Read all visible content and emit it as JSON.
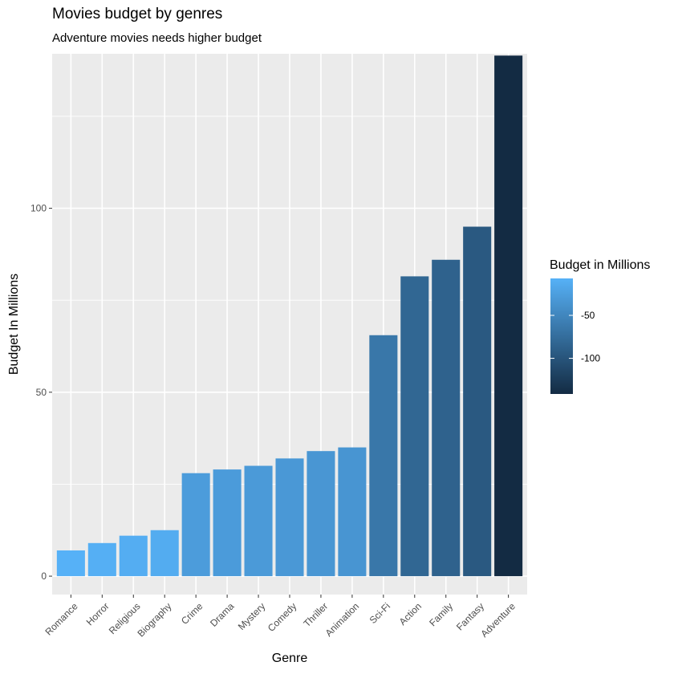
{
  "chart_data": {
    "type": "bar",
    "title": "Movies budget by genres",
    "subtitle": "Adventure movies needs higher budget",
    "xlabel": "Genre",
    "ylabel": "Budget In Millions",
    "categories": [
      "Romance",
      "Horror",
      "Religious",
      "Biography",
      "Crime",
      "Drama",
      "Mystery",
      "Comedy",
      "Thriller",
      "Animation",
      "Sci-Fi",
      "Action",
      "Family",
      "Fantasy",
      "Adventure"
    ],
    "values": [
      7,
      9,
      11,
      12.5,
      28,
      29,
      30,
      32,
      34,
      35,
      65.5,
      81.5,
      86,
      95,
      141.5
    ],
    "fill_values": [
      -7,
      -9,
      -11,
      -12.5,
      -28,
      -29,
      -30,
      -32,
      -34,
      -35,
      -65.5,
      -81.5,
      -86,
      -95,
      -141.5
    ],
    "ylim": [
      -5,
      142
    ],
    "y_ticks": [
      0,
      50,
      100
    ],
    "grid": true,
    "panel_background": "#EBEBEB",
    "legend": {
      "title": "Budget in Millions",
      "position": "right",
      "ticks": [
        -50,
        -100
      ],
      "range": [
        -141.5,
        -7
      ],
      "low_color": "#132B43",
      "high_color": "#56B1F7"
    }
  }
}
